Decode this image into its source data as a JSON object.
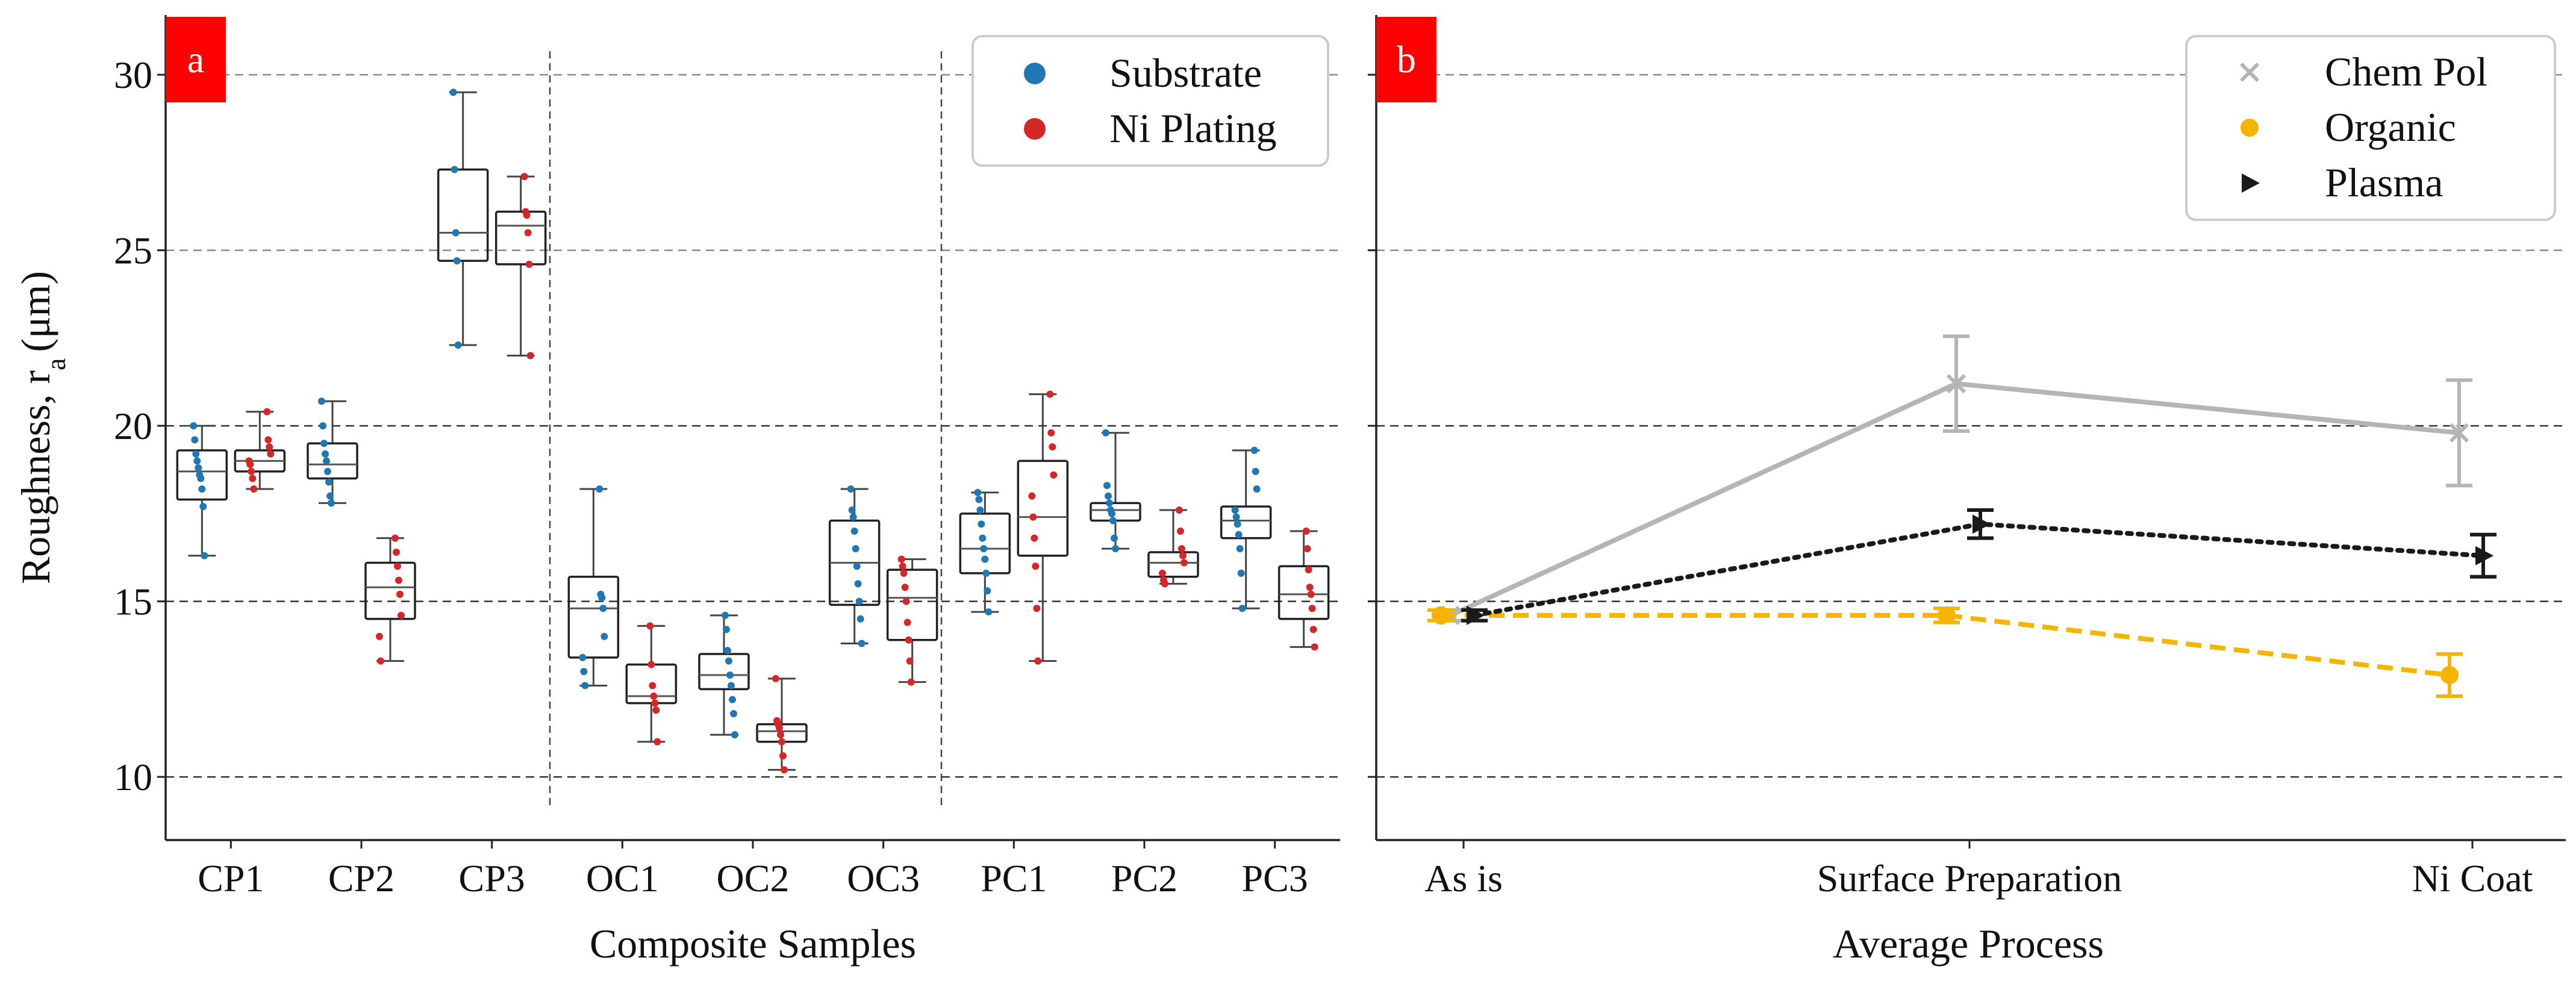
{
  "chart_data": [
    {
      "panel": "a",
      "type": "box",
      "xlabel": "Composite Samples",
      "ylabel": "Roughness, r",
      "ylabel_subscript": "a",
      "ylabel_unit": "(μm)",
      "ylim": [
        8.2,
        31.7
      ],
      "yticks": [
        10,
        15,
        20,
        25,
        30
      ],
      "grid": "horizontal-dashed",
      "legend_position": "top-right",
      "categories": [
        "CP1",
        "CP2",
        "CP3",
        "OC1",
        "OC2",
        "OC3",
        "PC1",
        "PC2",
        "PC3"
      ],
      "group_dividers_after": [
        "CP3",
        "OC3"
      ],
      "series": [
        {
          "name": "Substrate",
          "color": "#1f77b4",
          "boxes": [
            {
              "whislo": 16.3,
              "q1": 17.9,
              "med": 18.7,
              "q3": 19.3,
              "whishi": 20.0,
              "points": [
                16.3,
                17.7,
                18.2,
                18.5,
                18.6,
                18.8,
                19.0,
                19.2,
                19.6,
                20.0
              ]
            },
            {
              "whislo": 17.8,
              "q1": 18.5,
              "med": 18.9,
              "q3": 19.5,
              "whishi": 20.7,
              "points": [
                17.8,
                18.0,
                18.4,
                18.7,
                19.0,
                19.2,
                19.5,
                20.0,
                20.7
              ]
            },
            {
              "whislo": 22.3,
              "q1": 24.7,
              "med": 25.5,
              "q3": 27.3,
              "whishi": 29.5,
              "points": [
                22.3,
                24.7,
                25.5,
                27.3,
                29.5
              ]
            },
            {
              "whislo": 12.6,
              "q1": 13.4,
              "med": 14.8,
              "q3": 15.7,
              "whishi": 18.2,
              "points": [
                12.6,
                13.0,
                13.4,
                14.0,
                14.8,
                15.1,
                15.2,
                18.2
              ]
            },
            {
              "whislo": 11.2,
              "q1": 12.5,
              "med": 12.9,
              "q3": 13.5,
              "whishi": 14.6,
              "points": [
                11.2,
                11.8,
                12.2,
                12.6,
                12.9,
                13.3,
                13.6,
                14.2,
                14.6
              ]
            },
            {
              "whislo": 13.8,
              "q1": 14.9,
              "med": 16.1,
              "q3": 17.3,
              "whishi": 18.2,
              "points": [
                13.8,
                14.5,
                15.0,
                15.5,
                16.0,
                16.5,
                17.0,
                17.4,
                17.6,
                18.2
              ]
            },
            {
              "whislo": 14.7,
              "q1": 15.8,
              "med": 16.5,
              "q3": 17.5,
              "whishi": 18.1,
              "points": [
                14.7,
                15.3,
                15.8,
                16.2,
                16.5,
                16.8,
                17.2,
                17.6,
                17.9,
                18.1
              ]
            },
            {
              "whislo": 16.5,
              "q1": 17.3,
              "med": 17.6,
              "q3": 17.8,
              "whishi": 19.8,
              "points": [
                16.5,
                16.8,
                17.3,
                17.5,
                17.6,
                17.8,
                18.0,
                18.3,
                19.8
              ]
            },
            {
              "whislo": 14.8,
              "q1": 16.8,
              "med": 17.3,
              "q3": 17.7,
              "whishi": 19.3,
              "points": [
                14.8,
                15.8,
                16.5,
                16.9,
                17.2,
                17.4,
                17.6,
                18.2,
                18.7,
                19.3
              ]
            }
          ]
        },
        {
          "name": "Ni Plating",
          "color": "#d62728",
          "boxes": [
            {
              "whislo": 18.2,
              "q1": 18.7,
              "med": 19.0,
              "q3": 19.3,
              "whishi": 20.4,
              "points": [
                18.2,
                18.5,
                18.7,
                18.9,
                19.0,
                19.2,
                19.4,
                19.6,
                20.4
              ]
            },
            {
              "whislo": 13.3,
              "q1": 14.5,
              "med": 15.4,
              "q3": 16.1,
              "whishi": 16.8,
              "points": [
                13.3,
                14.0,
                14.6,
                15.2,
                15.6,
                16.0,
                16.4,
                16.8
              ]
            },
            {
              "whislo": 22.0,
              "q1": 24.6,
              "med": 25.7,
              "q3": 26.1,
              "whishi": 27.1,
              "points": [
                22.0,
                24.6,
                25.5,
                26.0,
                26.1,
                27.1
              ]
            },
            {
              "whislo": 11.0,
              "q1": 12.1,
              "med": 12.3,
              "q3": 13.2,
              "whishi": 14.3,
              "points": [
                11.0,
                11.9,
                12.1,
                12.3,
                12.6,
                13.2,
                14.3
              ]
            },
            {
              "whislo": 10.2,
              "q1": 11.0,
              "med": 11.3,
              "q3": 11.5,
              "whishi": 12.8,
              "points": [
                10.2,
                10.6,
                11.0,
                11.2,
                11.4,
                11.5,
                11.6,
                12.8
              ]
            },
            {
              "whislo": 12.7,
              "q1": 13.9,
              "med": 15.1,
              "q3": 15.9,
              "whishi": 16.2,
              "points": [
                12.7,
                13.3,
                13.9,
                14.4,
                15.0,
                15.4,
                15.8,
                16.0,
                16.2
              ]
            },
            {
              "whislo": 13.3,
              "q1": 16.3,
              "med": 17.4,
              "q3": 19.0,
              "whishi": 20.9,
              "points": [
                13.3,
                14.8,
                16.0,
                16.8,
                17.4,
                18.0,
                18.6,
                19.4,
                19.8,
                20.9
              ]
            },
            {
              "whislo": 15.5,
              "q1": 15.7,
              "med": 16.1,
              "q3": 16.4,
              "whishi": 17.6,
              "points": [
                15.5,
                15.6,
                15.8,
                16.1,
                16.3,
                16.5,
                17.0,
                17.6
              ]
            },
            {
              "whislo": 13.7,
              "q1": 14.5,
              "med": 15.2,
              "q3": 16.0,
              "whishi": 17.0,
              "points": [
                13.7,
                14.2,
                14.8,
                15.2,
                15.4,
                15.9,
                16.5,
                17.0
              ]
            }
          ]
        }
      ]
    },
    {
      "panel": "b",
      "type": "line",
      "xlabel": "Average Process",
      "ylim": [
        8.2,
        31.7
      ],
      "yticks": [
        10,
        15,
        20,
        25,
        30
      ],
      "grid": "horizontal-dashed",
      "legend_position": "top-right",
      "categories": [
        "As is",
        "Surface Preparation",
        "Ni Coat"
      ],
      "series": [
        {
          "name": "Chem Pol",
          "marker": "x",
          "line_style": "solid",
          "color": "#b5b5b5",
          "values": [
            14.6,
            21.2,
            19.8
          ],
          "errors": [
            0.15,
            1.35,
            1.5
          ]
        },
        {
          "name": "Organic",
          "marker": "circle",
          "line_style": "dashed",
          "color": "#f5b400",
          "values": [
            14.6,
            14.6,
            12.9
          ],
          "errors": [
            0.15,
            0.2,
            0.6
          ]
        },
        {
          "name": "Plasma",
          "marker": "triangle-right",
          "line_style": "dotted",
          "color": "#1a1a1a",
          "values": [
            14.6,
            17.2,
            16.3
          ],
          "errors": [
            0.15,
            0.4,
            0.6
          ]
        }
      ]
    }
  ]
}
